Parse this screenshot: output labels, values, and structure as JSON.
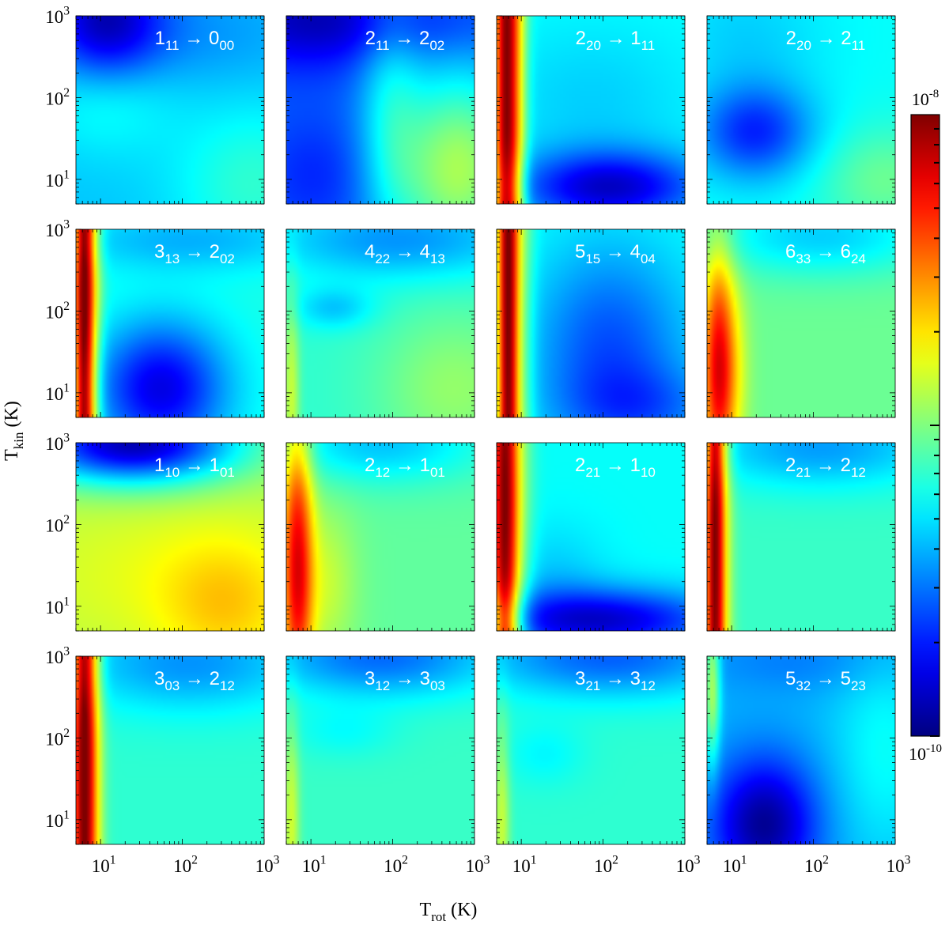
{
  "chart_data": {
    "type": "heatmap",
    "scale": "log-log",
    "x_axis": {
      "label_main": "T",
      "label_sub": "rot",
      "label_unit": " (K)",
      "range": [
        5,
        1000
      ],
      "tick_labels": [
        {
          "base": "10",
          "exp": "1"
        },
        {
          "base": "10",
          "exp": "2"
        },
        {
          "base": "10",
          "exp": "3"
        }
      ]
    },
    "y_axis": {
      "label_main": "T",
      "label_sub": "kin",
      "label_unit": " (K)",
      "range": [
        5,
        1000
      ],
      "tick_labels": [
        {
          "base": "10",
          "exp": "1"
        },
        {
          "base": "10",
          "exp": "2"
        },
        {
          "base": "10",
          "exp": "3"
        }
      ]
    },
    "colorbar": {
      "colormap": "jet",
      "range": [
        1e-10,
        1e-08
      ],
      "top_label": {
        "base": "10",
        "exp": "-8"
      },
      "bottom_label": {
        "base": "10",
        "exp": "-10"
      }
    },
    "grid": "4x4",
    "panels": [
      {
        "title": [
          [
            "1",
            "11"
          ],
          [
            "0",
            "00"
          ]
        ],
        "base": 0.32,
        "features": [
          [
            0.15,
            0.95,
            0.22,
            0.25,
            -0.28
          ],
          [
            0.15,
            0.62,
            0.25,
            0.22,
            0.12
          ],
          [
            0.95,
            0.1,
            0.3,
            0.3,
            0.1
          ],
          [
            0.6,
            0.9,
            0.4,
            0.2,
            -0.05
          ]
        ]
      },
      {
        "title": [
          [
            "2",
            "11"
          ],
          [
            "2",
            "02"
          ]
        ],
        "base": 0.22,
        "features": [
          [
            0.1,
            1,
            0.35,
            0.2,
            -0.15
          ],
          [
            0.15,
            0.15,
            0.2,
            0.22,
            -0.06
          ],
          [
            0.92,
            0.18,
            0.25,
            0.38,
            0.32
          ],
          [
            0.55,
            0.55,
            0.12,
            0.5,
            0.12
          ],
          [
            0.7,
            0.95,
            0.4,
            0.12,
            -0.05
          ]
        ]
      },
      {
        "title": [
          [
            "2",
            "20"
          ],
          [
            "1",
            "11"
          ]
        ],
        "base": 0.38,
        "features": [
          [
            0.04,
            0.5,
            0.045,
            2,
            0.6
          ],
          [
            0.11,
            0.5,
            0.04,
            2,
            0.18
          ],
          [
            0.6,
            0.08,
            0.35,
            0.14,
            -0.3
          ],
          [
            0.5,
            0.55,
            0.4,
            0.3,
            -0.05
          ]
        ]
      },
      {
        "title": [
          [
            "2",
            "20"
          ],
          [
            "2",
            "11"
          ]
        ],
        "base": 0.38,
        "features": [
          [
            0.25,
            0.38,
            0.22,
            0.18,
            -0.22
          ],
          [
            0.95,
            0.12,
            0.25,
            0.2,
            0.1
          ],
          [
            0.2,
            0.9,
            0.3,
            0.25,
            -0.05
          ]
        ]
      },
      {
        "title": [
          [
            "3",
            "13"
          ],
          [
            "2",
            "02"
          ]
        ],
        "base": 0.4,
        "features": [
          [
            0.03,
            0.55,
            0.035,
            2,
            0.55
          ],
          [
            0.08,
            0.5,
            0.04,
            2,
            0.2
          ],
          [
            0.45,
            0.15,
            0.25,
            0.25,
            -0.3
          ],
          [
            0.6,
            0.95,
            0.5,
            0.12,
            -0.1
          ]
        ]
      },
      {
        "title": [
          [
            "4",
            "22"
          ],
          [
            "4",
            "13"
          ]
        ],
        "base": 0.42,
        "features": [
          [
            0.25,
            0.58,
            0.15,
            0.08,
            -0.1
          ],
          [
            0.6,
            0.95,
            0.5,
            0.15,
            -0.15
          ],
          [
            0.9,
            0.15,
            0.3,
            0.3,
            0.1
          ],
          [
            0.02,
            0.1,
            0.03,
            0.4,
            0.15
          ]
        ]
      },
      {
        "title": [
          [
            "5",
            "15"
          ],
          [
            "4",
            "04"
          ]
        ],
        "base": 0.38,
        "features": [
          [
            0.05,
            0.5,
            0.04,
            2,
            0.6
          ],
          [
            0.12,
            0.5,
            0.05,
            2,
            0.15
          ],
          [
            0.6,
            0.35,
            0.3,
            0.4,
            -0.18
          ],
          [
            0.8,
            0.05,
            0.3,
            0.15,
            -0.1
          ]
        ]
      },
      {
        "title": [
          [
            "6",
            "33"
          ],
          [
            "6",
            "24"
          ]
        ],
        "base": 0.48,
        "features": [
          [
            0.05,
            0.25,
            0.06,
            0.45,
            0.4
          ],
          [
            0.14,
            0.25,
            0.06,
            0.35,
            0.1
          ],
          [
            0.6,
            0.97,
            0.45,
            0.15,
            -0.15
          ]
        ]
      },
      {
        "title": [
          [
            "1",
            "10"
          ],
          [
            "1",
            "01"
          ]
        ],
        "base": 0.55,
        "features": [
          [
            0.3,
            1,
            0.4,
            0.15,
            -0.5
          ],
          [
            0.8,
            0.12,
            0.25,
            0.25,
            0.1
          ],
          [
            0.5,
            0.3,
            0.6,
            0.3,
            0.05
          ]
        ]
      },
      {
        "title": [
          [
            "2",
            "12"
          ],
          [
            "1",
            "01"
          ]
        ],
        "base": 0.47,
        "features": [
          [
            0.05,
            0.35,
            0.06,
            0.6,
            0.4
          ],
          [
            0.2,
            0.25,
            0.12,
            0.3,
            0.1
          ],
          [
            0.5,
            1,
            0.4,
            0.15,
            -0.15
          ]
        ]
      },
      {
        "title": [
          [
            "2",
            "21"
          ],
          [
            "1",
            "10"
          ]
        ],
        "base": 0.38,
        "features": [
          [
            0.03,
            0.6,
            0.05,
            1.5,
            0.55
          ],
          [
            0.1,
            0.5,
            0.06,
            1.5,
            0.15
          ],
          [
            0.55,
            0.05,
            0.45,
            0.12,
            -0.3
          ],
          [
            0.3,
            0.3,
            0.2,
            0.2,
            -0.05
          ]
        ]
      },
      {
        "title": [
          [
            "2",
            "21"
          ],
          [
            "2",
            "12"
          ]
        ],
        "base": 0.43,
        "features": [
          [
            0.03,
            0.5,
            0.035,
            2,
            0.5
          ],
          [
            0.08,
            0.5,
            0.04,
            2,
            0.15
          ],
          [
            0.6,
            0.98,
            0.45,
            0.15,
            -0.15
          ]
        ]
      },
      {
        "title": [
          [
            "3",
            "03"
          ],
          [
            "2",
            "12"
          ]
        ],
        "base": 0.42,
        "features": [
          [
            0.03,
            0.5,
            0.04,
            2,
            0.55
          ],
          [
            0.09,
            0.5,
            0.04,
            2,
            0.18
          ],
          [
            0.6,
            0.97,
            0.45,
            0.18,
            -0.15
          ]
        ]
      },
      {
        "title": [
          [
            "3",
            "12"
          ],
          [
            "3",
            "03"
          ]
        ],
        "base": 0.43,
        "features": [
          [
            0.5,
            1,
            0.45,
            0.15,
            -0.2
          ],
          [
            0.3,
            0.6,
            0.2,
            0.1,
            -0.05
          ],
          [
            0.02,
            0.1,
            0.03,
            0.4,
            0.15
          ]
        ]
      },
      {
        "title": [
          [
            "3",
            "21"
          ],
          [
            "3",
            "12"
          ]
        ],
        "base": 0.42,
        "features": [
          [
            0.6,
            1,
            0.5,
            0.15,
            -0.2
          ],
          [
            0.25,
            0.48,
            0.15,
            0.12,
            -0.05
          ],
          [
            0.02,
            0.1,
            0.03,
            0.4,
            0.15
          ]
        ]
      },
      {
        "title": [
          [
            "5",
            "32"
          ],
          [
            "5",
            "23"
          ]
        ],
        "base": 0.3,
        "features": [
          [
            0.3,
            0.1,
            0.2,
            0.25,
            -0.28
          ],
          [
            0.02,
            0.85,
            0.03,
            0.3,
            0.25
          ],
          [
            0.95,
            0.5,
            0.2,
            0.4,
            0.08
          ],
          [
            0.5,
            0.98,
            0.4,
            0.12,
            -0.05
          ]
        ]
      }
    ]
  }
}
